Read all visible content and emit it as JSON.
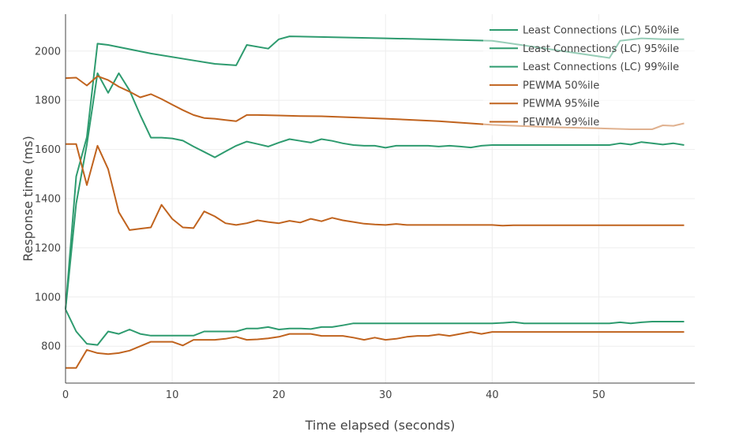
{
  "chart_data": {
    "type": "line",
    "title": "",
    "xlabel": "Time elapsed (seconds)",
    "ylabel": "Response time (ms)",
    "xlim": [
      0,
      59
    ],
    "ylim": [
      650,
      2150
    ],
    "xticks": [
      0,
      10,
      20,
      30,
      40,
      50
    ],
    "yticks": [
      800,
      1000,
      1200,
      1400,
      1600,
      1800,
      2000
    ],
    "grid": true,
    "legend_position": "top-right",
    "series": [
      {
        "name": "Least Connections (LC) 50%ile",
        "color": "#2e9b6f",
        "x": [
          0,
          1,
          2,
          3,
          4,
          5,
          6,
          7,
          8,
          10,
          11,
          12,
          13,
          14,
          15,
          16,
          17,
          18,
          19,
          20,
          21,
          22,
          23,
          24,
          25,
          26,
          27,
          28,
          29,
          30,
          31,
          32,
          33,
          34,
          35,
          36,
          37,
          38,
          39,
          40,
          41,
          42,
          43,
          44,
          45,
          46,
          47,
          48,
          49,
          50,
          51,
          52,
          53,
          54,
          55,
          56,
          57,
          58
        ],
        "values": [
          950,
          860,
          810,
          805,
          860,
          850,
          868,
          850,
          843,
          843,
          843,
          843,
          860,
          860,
          860,
          860,
          872,
          872,
          878,
          868,
          872,
          872,
          870,
          878,
          878,
          885,
          893,
          893,
          893,
          893,
          893,
          893,
          893,
          893,
          893,
          893,
          893,
          893,
          893,
          893,
          895,
          898,
          893,
          893,
          893,
          893,
          893,
          893,
          893,
          893,
          893,
          897,
          893,
          897,
          900,
          900,
          900,
          900
        ]
      },
      {
        "name": "Least Connections (LC) 95%ile",
        "color": "#2e9b6f",
        "x": [
          0,
          1,
          2,
          3,
          4,
          5,
          6,
          7,
          8,
          9,
          10,
          11,
          12,
          13,
          14,
          15,
          16,
          17,
          18,
          19,
          20,
          21,
          22,
          23,
          24,
          25,
          26,
          27,
          28,
          29,
          30,
          31,
          32,
          33,
          34,
          35,
          36,
          37,
          38,
          39,
          40,
          41,
          42,
          43,
          44,
          45,
          46,
          47,
          48,
          49,
          50,
          51,
          52,
          53,
          54,
          55,
          56,
          57,
          58
        ],
        "values": [
          950,
          1380,
          1620,
          1910,
          1830,
          1910,
          1840,
          1740,
          1648,
          1648,
          1645,
          1636,
          1612,
          1590,
          1568,
          1592,
          1615,
          1632,
          1622,
          1612,
          1628,
          1642,
          1635,
          1628,
          1642,
          1635,
          1625,
          1618,
          1615,
          1615,
          1607,
          1615,
          1615,
          1615,
          1615,
          1612,
          1615,
          1612,
          1608,
          1615,
          1618,
          1618,
          1618,
          1618,
          1618,
          1618,
          1618,
          1618,
          1618,
          1618,
          1618,
          1618,
          1625,
          1620,
          1630,
          1625,
          1620,
          1625,
          1618
        ]
      },
      {
        "name": "Least Connections (LC) 99%ile",
        "color": "#2e9b6f",
        "x": [
          0,
          1,
          2,
          3,
          4,
          8,
          12,
          14,
          16,
          17,
          19,
          20,
          21,
          30,
          40,
          51,
          52,
          54,
          56,
          58
        ],
        "values": [
          950,
          1490,
          1650,
          2030,
          2025,
          1990,
          1962,
          1948,
          1942,
          2025,
          2010,
          2048,
          2060,
          2052,
          2042,
          1972,
          2042,
          2052,
          2048,
          2048
        ]
      },
      {
        "name": "PEWMA 50%ile",
        "color": "#c0631e",
        "x": [
          0,
          1,
          2,
          3,
          4,
          5,
          6,
          7,
          8,
          10,
          11,
          12,
          13,
          14,
          15,
          16,
          17,
          18,
          19,
          20,
          21,
          22,
          23,
          24,
          25,
          26,
          27,
          28,
          29,
          30,
          31,
          32,
          33,
          34,
          35,
          36,
          37,
          38,
          39,
          40,
          41,
          42,
          43,
          44,
          45,
          46,
          47,
          48,
          49,
          50,
          51,
          52,
          53,
          54,
          55,
          56,
          57,
          58
        ],
        "values": [
          712,
          712,
          785,
          772,
          768,
          772,
          782,
          800,
          818,
          818,
          803,
          826,
          826,
          826,
          830,
          838,
          826,
          828,
          832,
          838,
          850,
          850,
          850,
          842,
          842,
          842,
          835,
          826,
          835,
          826,
          830,
          838,
          842,
          842,
          848,
          842,
          850,
          858,
          850,
          858,
          858,
          858,
          858,
          858,
          858,
          858,
          858,
          858,
          858,
          858,
          858,
          858,
          858,
          858,
          858,
          858,
          858,
          858
        ]
      },
      {
        "name": "PEWMA 95%ile",
        "color": "#c0631e",
        "x": [
          0,
          1,
          2,
          3,
          4,
          5,
          6,
          7,
          8,
          9,
          10,
          11,
          12,
          13,
          14,
          15,
          16,
          17,
          18,
          19,
          20,
          21,
          22,
          23,
          24,
          25,
          26,
          27,
          28,
          29,
          30,
          31,
          32,
          33,
          34,
          35,
          36,
          37,
          38,
          39,
          40,
          41,
          42,
          43,
          44,
          45,
          46,
          47,
          48,
          49,
          50,
          51,
          52,
          53,
          54,
          55,
          56,
          57,
          58
        ],
        "values": [
          1622,
          1622,
          1455,
          1615,
          1520,
          1345,
          1272,
          1278,
          1283,
          1375,
          1318,
          1283,
          1280,
          1348,
          1328,
          1300,
          1293,
          1300,
          1312,
          1305,
          1300,
          1310,
          1303,
          1318,
          1308,
          1322,
          1312,
          1305,
          1298,
          1295,
          1293,
          1297,
          1293,
          1293,
          1293,
          1293,
          1293,
          1293,
          1293,
          1293,
          1293,
          1290,
          1292,
          1292,
          1292,
          1292,
          1292,
          1292,
          1292,
          1292,
          1292,
          1292,
          1292,
          1292,
          1292,
          1292,
          1292,
          1292,
          1292
        ]
      },
      {
        "name": "PEWMA 99%ile",
        "color": "#c0631e",
        "x": [
          0,
          1,
          2,
          3,
          4,
          5,
          6,
          7,
          8,
          9,
          10,
          11,
          12,
          13,
          14,
          15,
          16,
          17,
          18,
          20,
          22,
          24,
          27,
          30,
          35,
          40,
          43,
          46,
          50,
          53,
          55,
          56,
          57,
          58
        ],
        "values": [
          1890,
          1892,
          1860,
          1898,
          1882,
          1855,
          1835,
          1812,
          1825,
          1805,
          1782,
          1760,
          1740,
          1728,
          1725,
          1720,
          1715,
          1740,
          1740,
          1738,
          1736,
          1735,
          1730,
          1725,
          1715,
          1700,
          1695,
          1690,
          1686,
          1682,
          1682,
          1698,
          1696,
          1706
        ]
      }
    ]
  }
}
